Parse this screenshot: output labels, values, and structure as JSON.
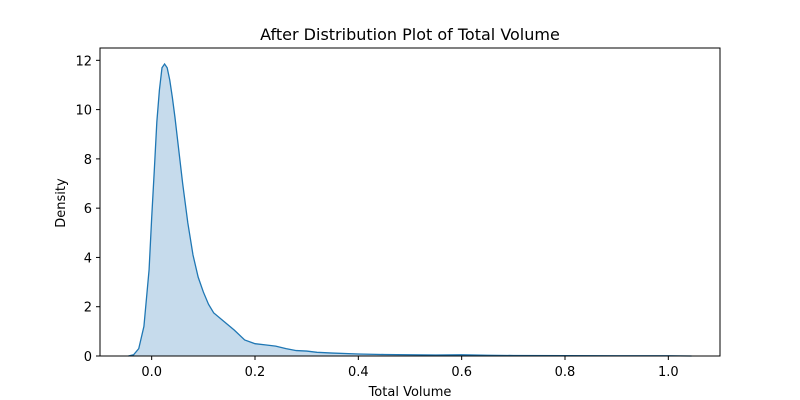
{
  "chart_data": {
    "type": "area",
    "title": "After Distribution Plot of Total Volume",
    "xlabel": "Total Volume",
    "ylabel": "Density",
    "xlim": [
      -0.1,
      1.1
    ],
    "ylim": [
      0,
      12.5
    ],
    "xticks": [
      0.0,
      0.2,
      0.4,
      0.6,
      0.8,
      1.0
    ],
    "xtick_labels": [
      "0.0",
      "0.2",
      "0.4",
      "0.6",
      "0.8",
      "1.0"
    ],
    "yticks": [
      0,
      2,
      4,
      6,
      8,
      10,
      12
    ],
    "ytick_labels": [
      "0",
      "2",
      "4",
      "6",
      "8",
      "10",
      "12"
    ],
    "grid": false,
    "line_color": "#1f77b4",
    "fill_color": "#c6dbec",
    "series": [
      {
        "x": [
          -0.045,
          -0.035,
          -0.025,
          -0.015,
          -0.005,
          0.0,
          0.005,
          0.01,
          0.015,
          0.02,
          0.025,
          0.03,
          0.035,
          0.04,
          0.045,
          0.05,
          0.06,
          0.07,
          0.08,
          0.09,
          0.1,
          0.11,
          0.12,
          0.14,
          0.16,
          0.18,
          0.2,
          0.22,
          0.24,
          0.26,
          0.28,
          0.3,
          0.32,
          0.35,
          0.4,
          0.45,
          0.5,
          0.55,
          0.6,
          0.65,
          0.7,
          0.8,
          0.9,
          1.0,
          1.045
        ],
        "y": [
          0.0,
          0.05,
          0.3,
          1.2,
          3.5,
          5.6,
          7.5,
          9.5,
          10.8,
          11.7,
          11.85,
          11.7,
          11.2,
          10.5,
          9.7,
          8.8,
          7.0,
          5.4,
          4.1,
          3.2,
          2.6,
          2.1,
          1.75,
          1.4,
          1.05,
          0.65,
          0.5,
          0.45,
          0.4,
          0.3,
          0.22,
          0.2,
          0.15,
          0.12,
          0.08,
          0.06,
          0.05,
          0.04,
          0.05,
          0.03,
          0.02,
          0.015,
          0.01,
          0.01,
          0.0
        ]
      }
    ]
  }
}
